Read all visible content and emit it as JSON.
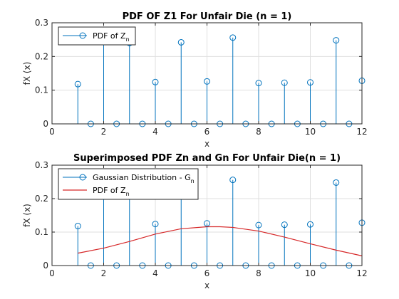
{
  "chart_data": [
    {
      "type": "stem",
      "title": "PDF OF Z1 For Unfair Die (n = 1)",
      "xlabel": "x",
      "ylabel": "fX (x)",
      "xlim": [
        0,
        12
      ],
      "ylim": [
        0,
        0.3
      ],
      "xticks": [
        "0",
        "2",
        "4",
        "6",
        "8",
        "10",
        "12"
      ],
      "yticks": [
        "0",
        "0.1",
        "0.2",
        "0.3"
      ],
      "grid": true,
      "legend_position": "top-left",
      "series": [
        {
          "name": "PDF of Z",
          "name_sub": "n",
          "color": "#0072BD",
          "marker": "circle",
          "points": [
            {
              "x": 1,
              "y": 0.118
            },
            {
              "x": 1.5,
              "y": 0
            },
            {
              "x": 2,
              "y": 0.25
            },
            {
              "x": 2.5,
              "y": 0
            },
            {
              "x": 3,
              "y": 0.24
            },
            {
              "x": 3.5,
              "y": 0
            },
            {
              "x": 4,
              "y": 0.124
            },
            {
              "x": 4.5,
              "y": 0
            },
            {
              "x": 5,
              "y": 0.242
            },
            {
              "x": 5.5,
              "y": 0
            },
            {
              "x": 6,
              "y": 0.126
            },
            {
              "x": 6.5,
              "y": 0
            },
            {
              "x": 7,
              "y": 0.256
            },
            {
              "x": 7.5,
              "y": 0
            },
            {
              "x": 8,
              "y": 0.121
            },
            {
              "x": 8.5,
              "y": 0
            },
            {
              "x": 9,
              "y": 0.122
            },
            {
              "x": 9.5,
              "y": 0
            },
            {
              "x": 10,
              "y": 0.123
            },
            {
              "x": 10.5,
              "y": 0
            },
            {
              "x": 11,
              "y": 0.248
            },
            {
              "x": 11.5,
              "y": 0
            },
            {
              "x": 12,
              "y": 0.128
            }
          ]
        }
      ]
    },
    {
      "type": "stem+line",
      "title": "Superimposed PDF Zn and Gn For Unfair Die(n = 1)",
      "xlabel": "x",
      "ylabel": "fX (x)",
      "xlim": [
        0,
        12
      ],
      "ylim": [
        0,
        0.3
      ],
      "xticks": [
        "0",
        "2",
        "4",
        "6",
        "8",
        "10",
        "12"
      ],
      "yticks": [
        "0",
        "0.1",
        "0.2",
        "0.3"
      ],
      "grid": true,
      "legend_position": "top-left",
      "series": [
        {
          "name": "Gaussian Distribution - G",
          "name_sub": "n",
          "color": "#0072BD",
          "kind": "stem",
          "marker": "circle",
          "points": [
            {
              "x": 1,
              "y": 0.118
            },
            {
              "x": 1.5,
              "y": 0
            },
            {
              "x": 2,
              "y": 0.25
            },
            {
              "x": 2.5,
              "y": 0
            },
            {
              "x": 3,
              "y": 0.24
            },
            {
              "x": 3.5,
              "y": 0
            },
            {
              "x": 4,
              "y": 0.124
            },
            {
              "x": 4.5,
              "y": 0
            },
            {
              "x": 5,
              "y": 0.242
            },
            {
              "x": 5.5,
              "y": 0
            },
            {
              "x": 6,
              "y": 0.126
            },
            {
              "x": 6.5,
              "y": 0
            },
            {
              "x": 7,
              "y": 0.256
            },
            {
              "x": 7.5,
              "y": 0
            },
            {
              "x": 8,
              "y": 0.121
            },
            {
              "x": 8.5,
              "y": 0
            },
            {
              "x": 9,
              "y": 0.122
            },
            {
              "x": 9.5,
              "y": 0
            },
            {
              "x": 10,
              "y": 0.123
            },
            {
              "x": 10.5,
              "y": 0
            },
            {
              "x": 11,
              "y": 0.248
            },
            {
              "x": 11.5,
              "y": 0
            },
            {
              "x": 12,
              "y": 0.128
            }
          ]
        },
        {
          "name": "PDF of Z",
          "name_sub": "n",
          "color": "#D62728",
          "kind": "line",
          "points": [
            {
              "x": 1,
              "y": 0.037
            },
            {
              "x": 2,
              "y": 0.052
            },
            {
              "x": 3,
              "y": 0.072
            },
            {
              "x": 4,
              "y": 0.094
            },
            {
              "x": 5,
              "y": 0.11
            },
            {
              "x": 6,
              "y": 0.116
            },
            {
              "x": 6.5,
              "y": 0.116
            },
            {
              "x": 7,
              "y": 0.114
            },
            {
              "x": 8,
              "y": 0.103
            },
            {
              "x": 9,
              "y": 0.085
            },
            {
              "x": 10,
              "y": 0.065
            },
            {
              "x": 11,
              "y": 0.046
            },
            {
              "x": 12,
              "y": 0.029
            }
          ]
        }
      ]
    }
  ]
}
